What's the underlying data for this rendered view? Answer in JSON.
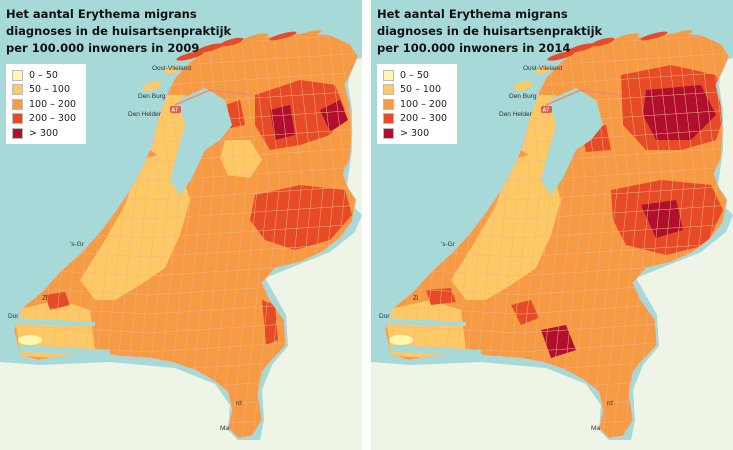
{
  "maps": [
    {
      "title_lines": [
        "Het aantal Erythema migrans",
        "diagnoses in de huisartsenpraktijk",
        "per 100.000 inwoners in 2009"
      ],
      "year": "2009"
    },
    {
      "title_lines": [
        "Het aantal Erythema migrans",
        "diagnoses in de huisartsenpraktijk",
        "per 100.000 inwoners in 2014"
      ],
      "year": "2014"
    }
  ],
  "legend": {
    "items": [
      {
        "label": "0 – 50",
        "color": "#fff7b0"
      },
      {
        "label": "50 – 100",
        "color": "#fdc965"
      },
      {
        "label": "100 – 200",
        "color": "#f69a43"
      },
      {
        "label": "200 – 300",
        "color": "#e64a26"
      },
      {
        "label": "> 300",
        "color": "#b0102e"
      }
    ]
  },
  "map_labels": {
    "oost_vlieland": "Oost-Vlieland",
    "den_burg": "Den Burg",
    "den_helder": "Den Helder",
    "road": "A7",
    "s_gravenhage": "'s-Gr",
    "zierikzee": "Zi",
    "domburg": "Dor",
    "roermond": "rd",
    "maastricht": "Ma"
  },
  "colors": {
    "sea": "#a6d9d8",
    "foreign_land": "#eef5e6",
    "lakes": "#a6d9d8",
    "road": "#e88a7a"
  }
}
